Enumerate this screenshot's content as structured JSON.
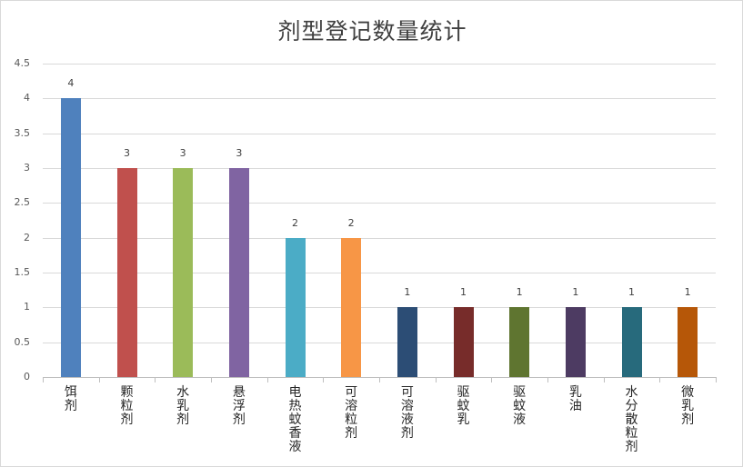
{
  "chart_data": {
    "type": "bar",
    "title": "剂型登记数量统计",
    "xlabel": "",
    "ylabel": "",
    "ylim": [
      0,
      4.5
    ],
    "yticks": [
      0,
      0.5,
      1,
      1.5,
      2,
      2.5,
      3,
      3.5,
      4,
      4.5
    ],
    "grid": true,
    "legend": null,
    "data_labels": true,
    "categories": [
      "饵剂",
      "颗粒剂",
      "水乳剂",
      "悬浮剂",
      "电热蚊香液",
      "可溶粒剂",
      "可溶液剂",
      "驱蚊乳",
      "驱蚊液",
      "乳油",
      "水分散粒剂",
      "微乳剂"
    ],
    "values": [
      4,
      3,
      3,
      3,
      2,
      2,
      1,
      1,
      1,
      1,
      1,
      1
    ],
    "colors": [
      "#4f81bd",
      "#c0504d",
      "#9bbb59",
      "#8064a2",
      "#4bacc6",
      "#f79646",
      "#2c4d75",
      "#772c2a",
      "#5f7530",
      "#4d3b62",
      "#276a7c",
      "#b65708"
    ]
  },
  "labels": {
    "title": "剂型登记数量统计",
    "yticks": [
      "0",
      "0.5",
      "1",
      "1.5",
      "2",
      "2.5",
      "3",
      "3.5",
      "4",
      "4.5"
    ],
    "values": [
      "4",
      "3",
      "3",
      "3",
      "2",
      "2",
      "1",
      "1",
      "1",
      "1",
      "1",
      "1"
    ],
    "categories": [
      "饵剂",
      "颗粒剂",
      "水乳剂",
      "悬浮剂",
      "电热蚊香液",
      "可溶粒剂",
      "可溶液剂",
      "驱蚊乳",
      "驱蚊液",
      "乳油",
      "水分散粒剂",
      "微乳剂"
    ]
  }
}
